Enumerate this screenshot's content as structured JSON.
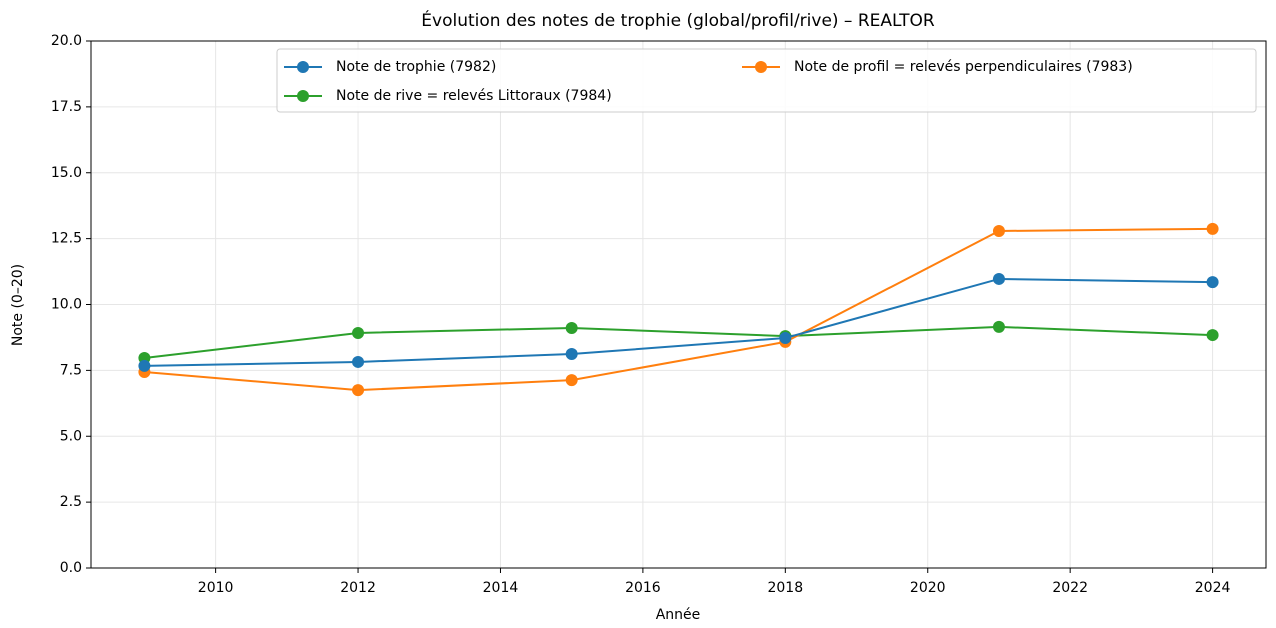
{
  "chart_data": {
    "type": "line",
    "title": "Évolution des notes de trophie (global/profil/rive) – REALTOR",
    "xlabel": "Année",
    "ylabel": "Note (0–20)",
    "x": [
      2009,
      2012,
      2015,
      2018,
      2021,
      2024
    ],
    "series": [
      {
        "name": "Note de trophie (7982)",
        "color": "#1f77b4",
        "values": [
          7.67,
          7.82,
          8.12,
          8.73,
          10.97,
          10.85
        ]
      },
      {
        "name": "Note de rive = relevés Littoraux (7984)",
        "color": "#2ca02c",
        "values": [
          7.97,
          8.92,
          9.11,
          8.8,
          9.15,
          8.84
        ]
      },
      {
        "name": "Note de profil = relevés perpendiculaires (7983)",
        "color": "#ff7f0e",
        "values": [
          7.44,
          6.75,
          7.13,
          8.58,
          12.79,
          12.87
        ]
      }
    ],
    "xlim": [
      2008.25,
      2024.75
    ],
    "xticks": [
      2010,
      2012,
      2014,
      2016,
      2018,
      2020,
      2022,
      2024
    ],
    "ylim": [
      0,
      20
    ],
    "yticks": [
      {
        "value": 0,
        "label": "0.0"
      },
      {
        "value": 2.5,
        "label": "2.5"
      },
      {
        "value": 5,
        "label": "5.0"
      },
      {
        "value": 7.5,
        "label": "7.5"
      },
      {
        "value": 10,
        "label": "10.0"
      },
      {
        "value": 12.5,
        "label": "12.5"
      },
      {
        "value": 15,
        "label": "15.0"
      },
      {
        "value": 17.5,
        "label": "17.5"
      },
      {
        "value": 20,
        "label": "20.0"
      }
    ],
    "grid": true,
    "legend": "upper right"
  }
}
